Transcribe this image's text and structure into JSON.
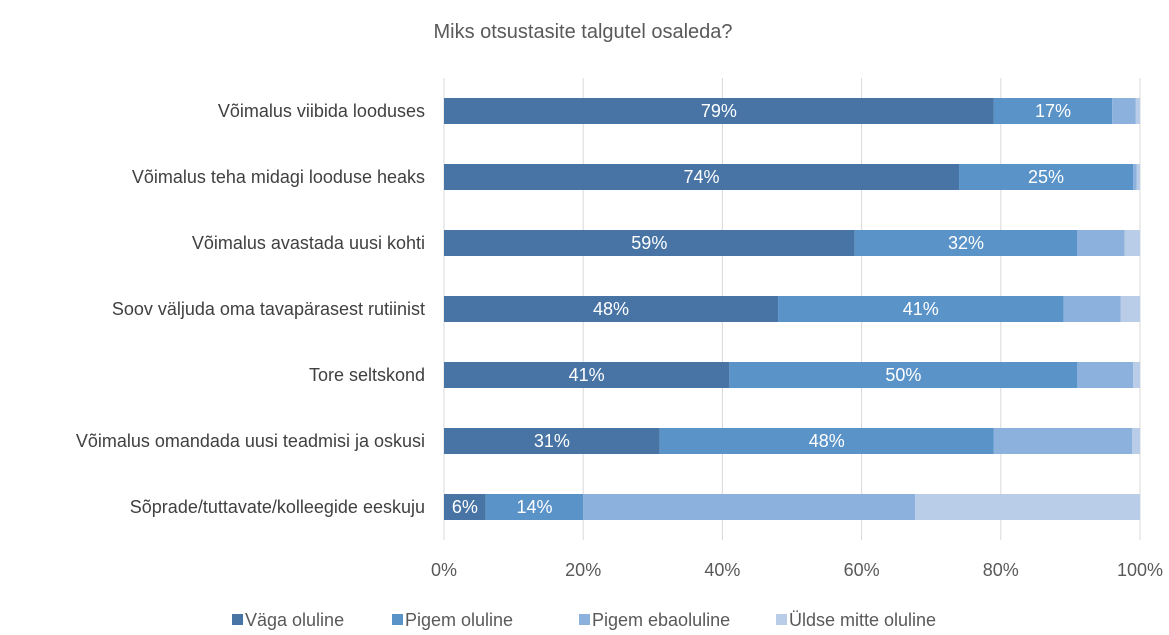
{
  "chart_data": {
    "type": "bar",
    "orientation": "horizontal",
    "stacked": true,
    "title": "Miks otsustasite talgutel osaleda?",
    "categories": [
      "Võimalus viibida looduses",
      "Võimalus teha midagi looduse heaks",
      "Võimalus avastada uusi kohti",
      "Soov väljuda oma tavapärasest rutiinist",
      "Tore seltskond",
      "Võimalus omandada uusi teadmisi ja oskusi",
      "Sõprade/tuttavate/kolleegide eeskuju"
    ],
    "series": [
      {
        "name": "Väga oluline",
        "color": "#4774a5",
        "values": [
          79,
          74,
          59,
          48,
          41,
          31,
          6
        ],
        "labels": [
          "79%",
          "74%",
          "59%",
          "48%",
          "41%",
          "31%",
          "6%"
        ]
      },
      {
        "name": "Pigem oluline",
        "color": "#5a93c8",
        "values": [
          17,
          25,
          32,
          41,
          50,
          48,
          14
        ],
        "labels": [
          "17%",
          "25%",
          "32%",
          "41%",
          "50%",
          "48%",
          "14%"
        ]
      },
      {
        "name": "Pigem ebaoluline",
        "color": "#8cb1dc",
        "values": [
          3.4,
          0.5,
          6.8,
          8.2,
          8,
          19.9,
          47.7
        ],
        "labels": [
          "",
          "",
          "",
          "",
          "",
          "",
          ""
        ]
      },
      {
        "name": "Üldse mitte oluline",
        "color": "#b9cde8",
        "values": [
          0.6,
          0.5,
          2.2,
          2.8,
          1,
          1.1,
          32.3
        ],
        "labels": [
          "",
          "",
          "",
          "",
          "",
          "",
          ""
        ]
      }
    ],
    "xlim": [
      0,
      100
    ],
    "x_ticks": [
      "0%",
      "20%",
      "40%",
      "60%",
      "80%",
      "100%"
    ],
    "grid": true,
    "legend_position": "bottom"
  }
}
